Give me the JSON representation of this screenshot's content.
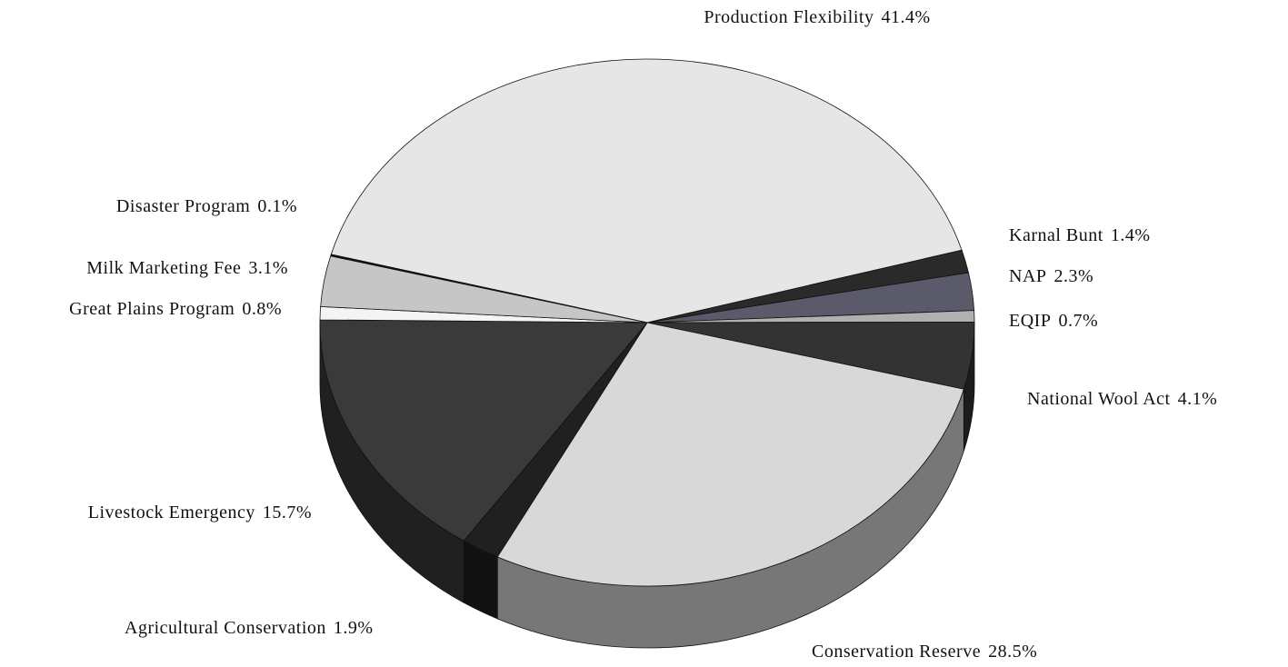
{
  "chart_data": {
    "type": "pie",
    "categories": [
      "Production Flexibility",
      "Karnal Bunt",
      "NAP",
      "EQIP",
      "National Wool Act",
      "Conservation Reserve",
      "Agricultural Conservation",
      "Livestock Emergency",
      "Great Plains Program",
      "Milk Marketing Fee",
      "Disaster Program"
    ],
    "values": [
      41.4,
      1.4,
      2.3,
      0.7,
      4.1,
      28.5,
      1.9,
      15.7,
      0.8,
      3.1,
      0.1
    ],
    "value_labels": [
      "41.4%",
      "1.4%",
      "2.3%",
      "0.7%",
      "4.1%",
      "28.5%",
      "1.9%",
      "15.7%",
      "0.8%",
      "3.1%",
      "0.1%"
    ],
    "colors": [
      "#e6e6e6",
      "#2a2a2a",
      "#5a5a6a",
      "#b0b0b0",
      "#333333",
      "#d8d8d8",
      "#202020",
      "#3a3a3a",
      "#f4f4f4",
      "#c6c6c6",
      "#111111"
    ]
  }
}
